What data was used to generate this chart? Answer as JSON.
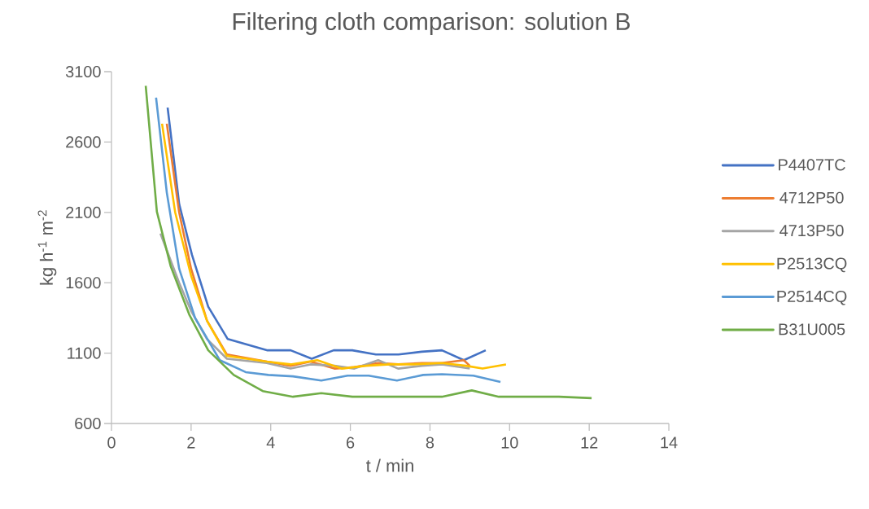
{
  "chart_data": {
    "type": "line",
    "title": "Filtering cloth comparison:  solution B",
    "xlabel": "t / min",
    "ylabel": "kg h$^{-1}$ m$^{-2}$",
    "xlim": [
      0,
      14
    ],
    "xticks": [
      0,
      2,
      4,
      6,
      8,
      10,
      12,
      14
    ],
    "ylim": [
      600,
      3100
    ],
    "yticks": [
      600,
      1100,
      1600,
      2100,
      2600,
      3100
    ],
    "legend": "right",
    "series": [
      {
        "name": "P4407TC",
        "color": "#4472c4",
        "x": [
          1.41,
          1.7,
          2.02,
          2.43,
          2.92,
          3.92,
          4.5,
          5.03,
          5.58,
          6.05,
          6.64,
          7.21,
          7.79,
          8.3,
          8.85,
          9.4
        ],
        "values": [
          2845,
          2160,
          1800,
          1430,
          1200,
          1120,
          1120,
          1060,
          1120,
          1120,
          1090,
          1090,
          1110,
          1120,
          1050,
          1120
        ]
      },
      {
        "name": "4712P50",
        "color": "#ed7d31",
        "x": [
          1.39,
          1.7,
          2.0,
          2.4,
          2.9,
          3.9,
          4.5,
          5.0,
          5.6,
          6.1,
          6.7,
          7.2,
          7.8,
          8.3,
          8.85,
          9.0
        ],
        "values": [
          2730,
          2100,
          1700,
          1330,
          1090,
          1040,
          1010,
          1040,
          990,
          1000,
          1030,
          1020,
          1030,
          1030,
          1050,
          1010
        ]
      },
      {
        "name": "4713P50",
        "color": "#a5a5a5",
        "x": [
          1.23,
          1.7,
          2.0,
          2.4,
          2.9,
          3.9,
          4.5,
          5.0,
          5.6,
          6.1,
          6.7,
          7.2,
          7.8,
          8.3,
          9.0
        ],
        "values": [
          1950,
          1600,
          1400,
          1200,
          1060,
          1030,
          990,
          1020,
          1010,
          990,
          1050,
          990,
          1010,
          1020,
          990
        ]
      },
      {
        "name": "P2513CQ",
        "color": "#ffc000",
        "x": [
          1.27,
          1.6,
          2.0,
          2.4,
          2.9,
          3.9,
          4.5,
          5.17,
          5.78,
          6.4,
          7.0,
          7.6,
          8.3,
          8.9,
          9.32,
          9.91
        ],
        "values": [
          2730,
          2100,
          1650,
          1330,
          1080,
          1040,
          1020,
          1050,
          990,
          1010,
          1020,
          1020,
          1030,
          1010,
          990,
          1020
        ]
      },
      {
        "name": "P2514CQ",
        "color": "#5b9bd5",
        "x": [
          1.12,
          1.39,
          1.7,
          2.1,
          2.72,
          3.37,
          3.94,
          4.56,
          5.27,
          5.93,
          6.46,
          7.17,
          7.83,
          8.3,
          9.09,
          9.77
        ],
        "values": [
          2915,
          2240,
          1700,
          1350,
          1050,
          965,
          945,
          935,
          905,
          940,
          940,
          905,
          945,
          950,
          940,
          895
        ]
      },
      {
        "name": "B31U005",
        "color": "#70ad47",
        "x": [
          0.86,
          1.14,
          1.49,
          1.96,
          2.43,
          3.07,
          3.8,
          4.56,
          5.27,
          6.05,
          6.74,
          7.56,
          8.3,
          9.05,
          9.73,
          11.24,
          12.06
        ],
        "values": [
          3000,
          2105,
          1715,
          1370,
          1120,
          945,
          830,
          790,
          815,
          790,
          790,
          790,
          790,
          835,
          790,
          790,
          780
        ]
      }
    ]
  }
}
